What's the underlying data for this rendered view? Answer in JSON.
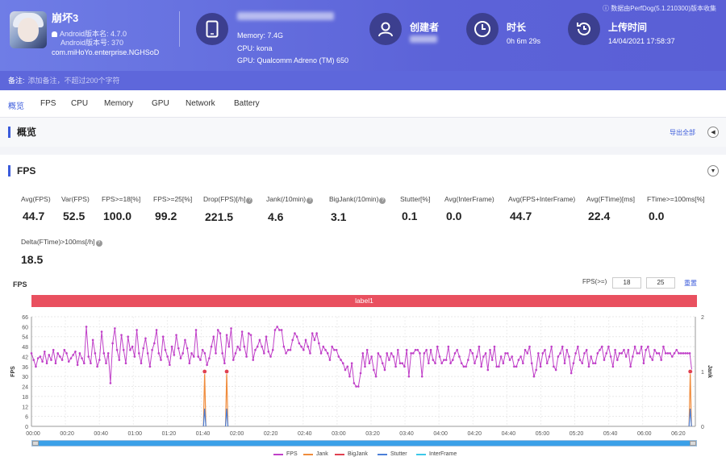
{
  "app": {
    "name": "崩坏3",
    "version": "Android版本名: 4.7.0",
    "version_code": "Android版本号: 370",
    "package": "com.miHoYo.enterprise.NGHSoD"
  },
  "device": {
    "memory": "Memory: 7.4G",
    "cpu": "CPU: kona",
    "gpu": "GPU: Qualcomm Adreno (TM) 650"
  },
  "creator": {
    "label": "创建者"
  },
  "duration": {
    "label": "时长",
    "value": "0h 6m 29s"
  },
  "upload": {
    "label": "上传时间",
    "value": "14/04/2021 17:58:37"
  },
  "perfdog": "数据由PerfDog(5.1.210300)版本收集",
  "note": {
    "label": "备注:",
    "placeholder": "添加备注，不超过200个字符"
  },
  "tabs": [
    "概览",
    "FPS",
    "CPU",
    "Memory",
    "GPU",
    "Network",
    "Battery"
  ],
  "overview": {
    "title": "概览",
    "export": "导出全部"
  },
  "fps_section": {
    "title": "FPS",
    "metrics": [
      {
        "k": "Avg(FPS)",
        "v": "44.7"
      },
      {
        "k": "Var(FPS)",
        "v": "52.5"
      },
      {
        "k": "FPS>=18[%]",
        "v": "100.0"
      },
      {
        "k": "FPS>=25[%]",
        "v": "99.2"
      },
      {
        "k": "Drop(FPS)[/h]",
        "v": "221.5"
      },
      {
        "k": "Jank(/10min)",
        "v": "4.6"
      },
      {
        "k": "BigJank(/10min)",
        "v": "3.1"
      },
      {
        "k": "Stutter[%]",
        "v": "0.1"
      },
      {
        "k": "Avg(InterFrame)",
        "v": "0.0"
      },
      {
        "k": "Avg(FPS+InterFrame)",
        "v": "44.7"
      },
      {
        "k": "Avg(FTime)[ms]",
        "v": "22.4"
      },
      {
        "k": "FTime>=100ms[%]",
        "v": "0.0"
      },
      {
        "k": "Delta(FTime)>100ms[/h]",
        "v": "18.5"
      }
    ],
    "chart_label": "FPS",
    "threshold_label": "FPS(>=)",
    "threshold_1": "18",
    "threshold_2": "25",
    "reset": "重置",
    "band_label": "label1"
  },
  "chart_data": {
    "type": "line",
    "ylabel": "FPS",
    "y2label": "Jank",
    "ylim": [
      0,
      66
    ],
    "y2lim": [
      0,
      2
    ],
    "yticks": [
      "0",
      "6",
      "12",
      "18",
      "24",
      "30",
      "36",
      "42",
      "48",
      "54",
      "60",
      "66"
    ],
    "y2ticks": [
      "0",
      "1",
      "2"
    ],
    "xticks": [
      "00:00",
      "00:20",
      "00:40",
      "01:00",
      "01:20",
      "01:40",
      "02:00",
      "02:20",
      "02:40",
      "03:00",
      "03:20",
      "03:40",
      "04:00",
      "04:20",
      "04:40",
      "05:00",
      "05:20",
      "05:40",
      "06:00",
      "06:20"
    ],
    "grid": true,
    "series": [
      {
        "name": "FPS",
        "color": "#c040c8",
        "values": [
          44,
          40,
          36,
          41,
          42,
          39,
          45,
          38,
          43,
          40,
          46,
          38,
          44,
          42,
          40,
          46,
          44,
          39,
          41,
          43,
          45,
          37,
          44,
          41,
          38,
          60,
          42,
          38,
          52,
          44,
          36,
          40,
          57,
          44,
          38,
          44,
          26,
          50,
          59,
          46,
          40,
          55,
          46,
          38,
          54,
          46,
          48,
          42,
          58,
          44,
          38,
          47,
          53,
          44,
          36,
          46,
          50,
          58,
          44,
          40,
          54,
          46,
          42,
          37,
          48,
          43,
          55,
          47,
          41,
          44,
          52,
          47,
          38,
          44,
          42,
          58,
          42,
          40,
          46,
          44,
          37,
          41,
          48,
          54,
          44,
          58,
          56,
          44,
          38,
          55,
          48,
          59,
          40,
          44,
          48,
          46,
          57,
          48,
          42,
          56,
          55,
          40,
          46,
          48,
          52,
          48,
          44,
          54,
          45,
          42,
          46,
          58,
          60,
          58,
          58,
          48,
          44,
          46,
          46,
          52,
          56,
          54,
          50,
          48,
          46,
          52,
          48,
          44,
          56,
          52,
          56,
          50,
          44,
          48,
          46,
          44,
          40,
          48,
          46,
          46,
          42,
          40,
          38,
          34,
          36,
          30,
          38,
          26,
          24,
          24,
          32,
          44,
          36,
          46,
          38,
          42,
          34,
          30,
          44,
          42,
          38,
          34,
          44,
          40,
          44,
          42,
          36,
          46,
          38,
          38,
          36,
          46,
          30,
          44,
          44,
          46,
          46,
          44,
          30,
          44,
          46,
          38,
          46,
          40,
          38,
          48,
          42,
          38,
          40,
          40,
          48,
          38,
          40,
          44,
          46,
          42,
          38,
          36,
          36,
          40,
          46,
          44,
          38,
          42,
          48,
          36,
          42,
          44,
          34,
          46,
          40,
          48,
          36,
          36,
          42,
          38,
          44,
          44,
          40,
          42,
          36,
          36,
          40,
          42,
          38,
          46,
          44,
          48,
          38,
          30,
          34,
          44,
          36,
          44,
          46,
          38,
          42,
          48,
          36,
          34,
          42,
          44,
          48,
          38,
          46,
          42,
          32,
          38,
          44,
          48,
          40,
          38,
          44,
          46,
          36,
          42,
          38,
          38,
          44,
          46,
          48,
          40,
          44,
          48,
          42,
          36,
          46,
          40,
          44,
          44,
          46,
          42,
          46,
          36,
          42,
          48,
          44,
          44,
          48,
          38,
          46,
          48,
          42,
          40,
          46,
          44,
          44,
          40,
          48,
          44,
          44,
          44,
          42,
          44,
          46,
          44,
          44,
          44,
          44,
          44,
          44,
          33
        ]
      },
      {
        "name": "Jank",
        "color": "#f08c3c"
      },
      {
        "name": "BigJank",
        "color": "#e04050"
      },
      {
        "name": "Stutter",
        "color": "#4a7fd8"
      },
      {
        "name": "InterFrame",
        "color": "#3cc8e8"
      }
    ],
    "jank_events": [
      {
        "x": "01:42",
        "fps": 33,
        "jank": 1
      },
      {
        "x": "01:55",
        "fps": 33,
        "jank": 1
      },
      {
        "x": "06:28",
        "fps": 33,
        "jank": 1
      }
    ]
  },
  "colors": {
    "header": "#6068da",
    "accent": "#3b5bdb",
    "band": "#e9505f"
  }
}
